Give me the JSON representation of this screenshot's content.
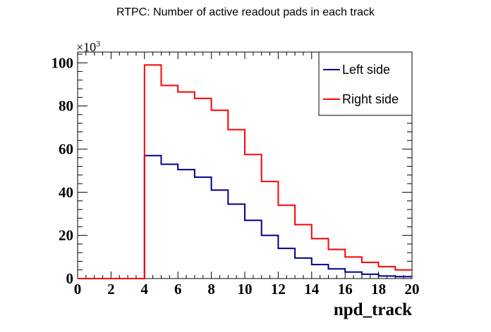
{
  "chart_data": {
    "type": "histogram",
    "title": "RTPC: Number of active readout pads in each track",
    "xlabel": "npd_track",
    "ylabel": "",
    "y_multiplier": "×10",
    "y_multiplier_exp": "3",
    "xlim": [
      0,
      20
    ],
    "ylim": [
      0,
      105000
    ],
    "x_ticks": [
      0,
      2,
      4,
      6,
      8,
      10,
      12,
      14,
      16,
      18,
      20
    ],
    "y_ticks": [
      0,
      20,
      40,
      60,
      80,
      100
    ],
    "bin_edges": [
      0,
      1,
      2,
      3,
      4,
      5,
      6,
      7,
      8,
      9,
      10,
      11,
      12,
      13,
      14,
      15,
      16,
      17,
      18,
      19,
      20
    ],
    "legend_position": "top-right",
    "series": [
      {
        "name": "Left side",
        "color": "#00008b",
        "values": [
          0,
          0,
          0,
          0,
          57000,
          53000,
          50500,
          47000,
          41000,
          34500,
          27000,
          20000,
          14000,
          9500,
          6500,
          4500,
          3000,
          2000,
          1200,
          900
        ]
      },
      {
        "name": "Right side",
        "color": "#ff0000",
        "values": [
          0,
          0,
          0,
          0,
          99000,
          89500,
          86500,
          83500,
          78000,
          69000,
          57500,
          45000,
          34000,
          25000,
          18500,
          13500,
          10000,
          7500,
          5500,
          4000
        ]
      }
    ]
  }
}
